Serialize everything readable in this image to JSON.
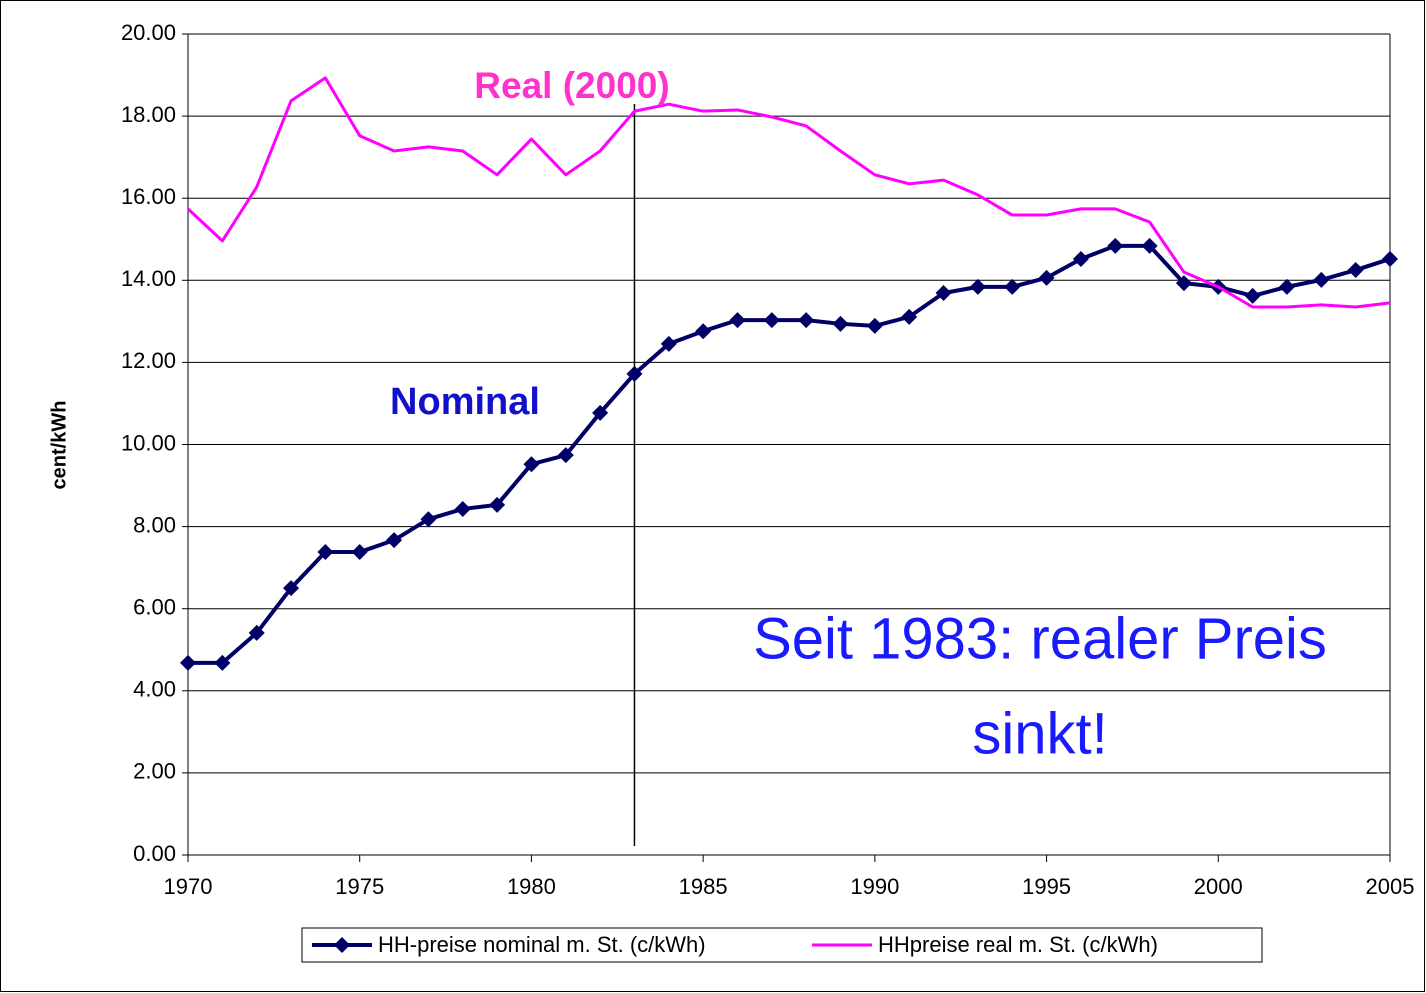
{
  "chart_data": {
    "type": "line",
    "y_label": "cent/kWh",
    "annotations": {
      "real": "Real (2000)",
      "nominal": "Nominal",
      "note": [
        "Seit 1983: realer Preis",
        "sinkt!"
      ]
    },
    "vline_x": 1983,
    "x": [
      1970,
      1971,
      1972,
      1973,
      1974,
      1975,
      1976,
      1977,
      1978,
      1979,
      1980,
      1981,
      1982,
      1983,
      1984,
      1985,
      1986,
      1987,
      1988,
      1989,
      1990,
      1991,
      1992,
      1993,
      1994,
      1995,
      1996,
      1997,
      1998,
      1999,
      2000,
      2001,
      2002,
      2003,
      2004,
      2005
    ],
    "series": [
      {
        "name": "HH-preise nominal m. St. (c/kWh)",
        "color": "#000066",
        "marker": "diamond",
        "values": [
          4.68,
          4.68,
          5.41,
          6.5,
          7.38,
          7.38,
          7.67,
          8.18,
          8.43,
          8.53,
          9.52,
          9.74,
          10.77,
          11.72,
          12.45,
          12.76,
          13.03,
          13.03,
          13.03,
          12.94,
          12.89,
          13.11,
          13.69,
          13.84,
          13.84,
          14.06,
          14.52,
          14.84,
          14.84,
          13.93,
          13.84,
          13.62,
          13.84,
          14.01,
          14.25,
          14.52
        ]
      },
      {
        "name": "HHpreise real m. St. (c/kWh)",
        "color": "#ff00ff",
        "values": [
          15.74,
          14.96,
          16.27,
          18.37,
          18.93,
          17.52,
          17.15,
          17.25,
          17.15,
          16.57,
          17.44,
          16.57,
          17.15,
          18.12,
          18.29,
          18.12,
          18.15,
          17.98,
          17.76,
          17.15,
          16.57,
          16.35,
          16.44,
          16.08,
          15.59,
          15.59,
          15.74,
          15.74,
          15.42,
          14.2,
          13.84,
          13.35,
          13.35,
          13.4,
          13.35,
          13.45
        ]
      }
    ],
    "xlim": [
      1970,
      2005
    ],
    "xticks": [
      1970,
      1975,
      1980,
      1985,
      1990,
      1995,
      2000,
      2005
    ],
    "ylim": [
      0,
      20
    ],
    "yticks": [
      {
        "value": 0,
        "label": "0.00"
      },
      {
        "value": 2,
        "label": "2.00"
      },
      {
        "value": 4,
        "label": "4.00"
      },
      {
        "value": 6,
        "label": "6.00"
      },
      {
        "value": 8,
        "label": "8.00"
      },
      {
        "value": 10,
        "label": "10.00"
      },
      {
        "value": 12,
        "label": "12.00"
      },
      {
        "value": 14,
        "label": "14.00"
      },
      {
        "value": 16,
        "label": "16.00"
      },
      {
        "value": 18,
        "label": "18.00"
      },
      {
        "value": 20,
        "label": "20.00"
      }
    ],
    "grid": true
  }
}
